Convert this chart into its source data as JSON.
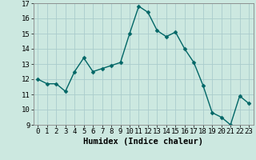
{
  "x": [
    0,
    1,
    2,
    3,
    4,
    5,
    6,
    7,
    8,
    9,
    10,
    11,
    12,
    13,
    14,
    15,
    16,
    17,
    18,
    19,
    20,
    21,
    22,
    23
  ],
  "y": [
    12.0,
    11.7,
    11.7,
    11.2,
    12.5,
    13.4,
    12.5,
    12.7,
    12.9,
    13.1,
    15.0,
    16.8,
    16.4,
    15.2,
    14.8,
    15.1,
    14.0,
    13.1,
    11.6,
    9.8,
    9.5,
    9.0,
    10.9,
    10.4
  ],
  "bg_color": "#cce8e0",
  "line_color": "#006666",
  "marker_color": "#006666",
  "grid_color": "#aacccc",
  "xlabel": "Humidex (Indice chaleur)",
  "ylim": [
    9,
    17
  ],
  "xlim": [
    -0.5,
    23.5
  ],
  "yticks": [
    9,
    10,
    11,
    12,
    13,
    14,
    15,
    16,
    17
  ],
  "xticks": [
    0,
    1,
    2,
    3,
    4,
    5,
    6,
    7,
    8,
    9,
    10,
    11,
    12,
    13,
    14,
    15,
    16,
    17,
    18,
    19,
    20,
    21,
    22,
    23
  ],
  "xlabel_fontsize": 7.5,
  "tick_fontsize": 6.5,
  "line_width": 1.0,
  "marker_size": 2.5
}
